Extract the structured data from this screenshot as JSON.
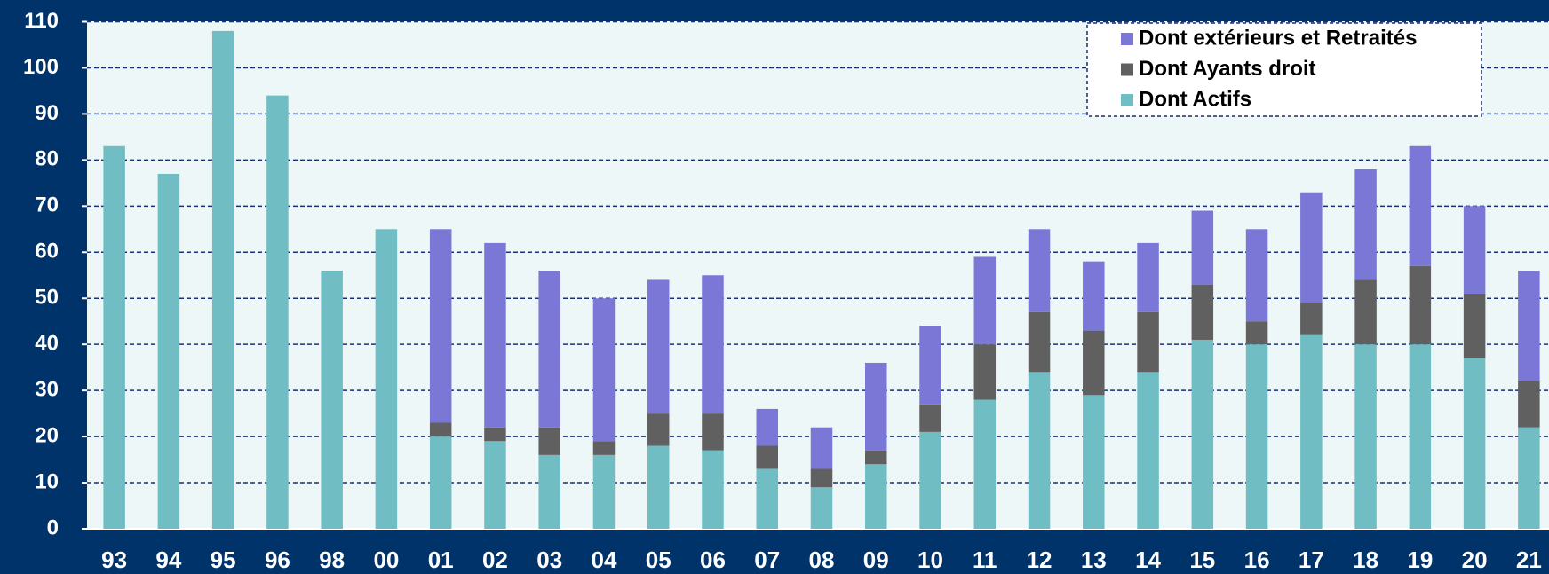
{
  "chart_data": {
    "type": "stacked_bar",
    "categories": [
      "93",
      "94",
      "95",
      "96",
      "98",
      "00",
      "01",
      "02",
      "03",
      "04",
      "05",
      "06",
      "07",
      "08",
      "09",
      "10",
      "11",
      "12",
      "13",
      "14",
      "15",
      "16",
      "17",
      "18",
      "19",
      "20",
      "21"
    ],
    "series": [
      {
        "name": "Dont Actifs",
        "color": "#70bec4",
        "values": [
          83,
          77,
          108,
          94,
          56,
          65,
          20,
          19,
          16,
          16,
          18,
          17,
          13,
          9,
          14,
          21,
          28,
          34,
          29,
          34,
          41,
          40,
          42,
          40,
          40,
          37,
          22
        ]
      },
      {
        "name": "Dont Ayants droit",
        "color": "#606060",
        "values": [
          null,
          null,
          null,
          null,
          null,
          null,
          3,
          3,
          6,
          3,
          7,
          8,
          5,
          4,
          3,
          6,
          12,
          13,
          14,
          13,
          12,
          5,
          7,
          14,
          17,
          14,
          10
        ]
      },
      {
        "name": "Dont extérieurs et Retraités",
        "color": "#7b77d6",
        "values": [
          null,
          null,
          null,
          null,
          null,
          null,
          42,
          40,
          34,
          31,
          29,
          30,
          8,
          9,
          19,
          17,
          19,
          18,
          15,
          15,
          16,
          20,
          24,
          24,
          26,
          19,
          24
        ]
      }
    ],
    "ylim": [
      0,
      110
    ],
    "yticks": [
      0,
      10,
      20,
      30,
      40,
      50,
      60,
      70,
      80,
      90,
      100,
      110
    ],
    "grid": true,
    "legend": "top-right"
  }
}
